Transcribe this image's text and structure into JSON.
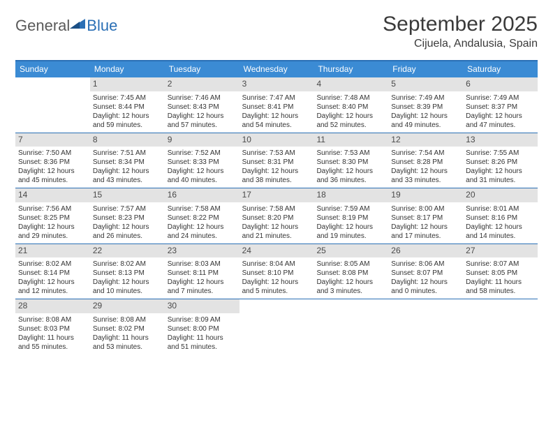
{
  "brand": {
    "part1": "General",
    "part2": "Blue"
  },
  "title": "September 2025",
  "location": "Cijuela, Andalusia, Spain",
  "colors": {
    "header_bg": "#3b8bd4",
    "rule": "#2a6fb5",
    "daybar": "#e3e3e3",
    "text": "#333333",
    "brand_blue": "#2a6fb5",
    "brand_gray": "#5a5a5a"
  },
  "weekdays": [
    "Sunday",
    "Monday",
    "Tuesday",
    "Wednesday",
    "Thursday",
    "Friday",
    "Saturday"
  ],
  "weeks": [
    [
      null,
      {
        "n": "1",
        "sr": "7:45 AM",
        "ss": "8:44 PM",
        "dl": "12 hours and 59 minutes."
      },
      {
        "n": "2",
        "sr": "7:46 AM",
        "ss": "8:43 PM",
        "dl": "12 hours and 57 minutes."
      },
      {
        "n": "3",
        "sr": "7:47 AM",
        "ss": "8:41 PM",
        "dl": "12 hours and 54 minutes."
      },
      {
        "n": "4",
        "sr": "7:48 AM",
        "ss": "8:40 PM",
        "dl": "12 hours and 52 minutes."
      },
      {
        "n": "5",
        "sr": "7:49 AM",
        "ss": "8:39 PM",
        "dl": "12 hours and 49 minutes."
      },
      {
        "n": "6",
        "sr": "7:49 AM",
        "ss": "8:37 PM",
        "dl": "12 hours and 47 minutes."
      }
    ],
    [
      {
        "n": "7",
        "sr": "7:50 AM",
        "ss": "8:36 PM",
        "dl": "12 hours and 45 minutes."
      },
      {
        "n": "8",
        "sr": "7:51 AM",
        "ss": "8:34 PM",
        "dl": "12 hours and 43 minutes."
      },
      {
        "n": "9",
        "sr": "7:52 AM",
        "ss": "8:33 PM",
        "dl": "12 hours and 40 minutes."
      },
      {
        "n": "10",
        "sr": "7:53 AM",
        "ss": "8:31 PM",
        "dl": "12 hours and 38 minutes."
      },
      {
        "n": "11",
        "sr": "7:53 AM",
        "ss": "8:30 PM",
        "dl": "12 hours and 36 minutes."
      },
      {
        "n": "12",
        "sr": "7:54 AM",
        "ss": "8:28 PM",
        "dl": "12 hours and 33 minutes."
      },
      {
        "n": "13",
        "sr": "7:55 AM",
        "ss": "8:26 PM",
        "dl": "12 hours and 31 minutes."
      }
    ],
    [
      {
        "n": "14",
        "sr": "7:56 AM",
        "ss": "8:25 PM",
        "dl": "12 hours and 29 minutes."
      },
      {
        "n": "15",
        "sr": "7:57 AM",
        "ss": "8:23 PM",
        "dl": "12 hours and 26 minutes."
      },
      {
        "n": "16",
        "sr": "7:58 AM",
        "ss": "8:22 PM",
        "dl": "12 hours and 24 minutes."
      },
      {
        "n": "17",
        "sr": "7:58 AM",
        "ss": "8:20 PM",
        "dl": "12 hours and 21 minutes."
      },
      {
        "n": "18",
        "sr": "7:59 AM",
        "ss": "8:19 PM",
        "dl": "12 hours and 19 minutes."
      },
      {
        "n": "19",
        "sr": "8:00 AM",
        "ss": "8:17 PM",
        "dl": "12 hours and 17 minutes."
      },
      {
        "n": "20",
        "sr": "8:01 AM",
        "ss": "8:16 PM",
        "dl": "12 hours and 14 minutes."
      }
    ],
    [
      {
        "n": "21",
        "sr": "8:02 AM",
        "ss": "8:14 PM",
        "dl": "12 hours and 12 minutes."
      },
      {
        "n": "22",
        "sr": "8:02 AM",
        "ss": "8:13 PM",
        "dl": "12 hours and 10 minutes."
      },
      {
        "n": "23",
        "sr": "8:03 AM",
        "ss": "8:11 PM",
        "dl": "12 hours and 7 minutes."
      },
      {
        "n": "24",
        "sr": "8:04 AM",
        "ss": "8:10 PM",
        "dl": "12 hours and 5 minutes."
      },
      {
        "n": "25",
        "sr": "8:05 AM",
        "ss": "8:08 PM",
        "dl": "12 hours and 3 minutes."
      },
      {
        "n": "26",
        "sr": "8:06 AM",
        "ss": "8:07 PM",
        "dl": "12 hours and 0 minutes."
      },
      {
        "n": "27",
        "sr": "8:07 AM",
        "ss": "8:05 PM",
        "dl": "11 hours and 58 minutes."
      }
    ],
    [
      {
        "n": "28",
        "sr": "8:08 AM",
        "ss": "8:03 PM",
        "dl": "11 hours and 55 minutes."
      },
      {
        "n": "29",
        "sr": "8:08 AM",
        "ss": "8:02 PM",
        "dl": "11 hours and 53 minutes."
      },
      {
        "n": "30",
        "sr": "8:09 AM",
        "ss": "8:00 PM",
        "dl": "11 hours and 51 minutes."
      },
      null,
      null,
      null,
      null
    ]
  ],
  "labels": {
    "sunrise": "Sunrise:",
    "sunset": "Sunset:",
    "daylight": "Daylight:"
  }
}
